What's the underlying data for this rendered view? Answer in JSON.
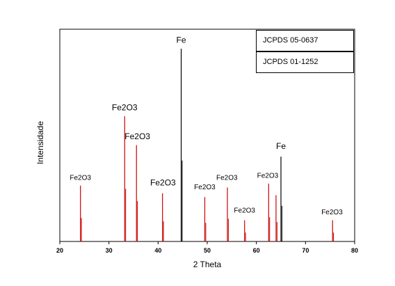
{
  "chart_data": {
    "type": "bar",
    "xlabel": "2 Theta",
    "ylabel": "Intensidade",
    "xlim": [
      20,
      80
    ],
    "ylim": [
      0,
      100
    ],
    "x_ticks": [
      "20",
      "30",
      "40",
      "50",
      "60",
      "70",
      "80"
    ],
    "grid": false,
    "legend": [
      "JCPDS 05-0637",
      "JCPDS 01-1252"
    ],
    "colors": {
      "fe2o3": "#cc0000",
      "fe": "#000000"
    },
    "series": [
      {
        "phase": "Fe2O3",
        "color": "#cc0000",
        "peaks": [
          {
            "x": 24.2,
            "y": 29
          },
          {
            "x": 33.2,
            "y": 65
          },
          {
            "x": 35.6,
            "y": 50
          },
          {
            "x": 40.9,
            "y": 25
          },
          {
            "x": 49.5,
            "y": 23
          },
          {
            "x": 54.1,
            "y": 28
          },
          {
            "x": 57.6,
            "y": 11
          },
          {
            "x": 62.5,
            "y": 30
          },
          {
            "x": 64.0,
            "y": 24
          },
          {
            "x": 75.5,
            "y": 11
          }
        ]
      },
      {
        "phase": "Fe",
        "color": "#000000",
        "peaks": [
          {
            "x": 44.7,
            "y": 100
          },
          {
            "x": 65.0,
            "y": 44
          }
        ]
      }
    ],
    "annotations": [
      {
        "text": "Fe2O3",
        "x": 24.2,
        "y": 32,
        "size": "small"
      },
      {
        "text": "Fe2O3",
        "x": 33.2,
        "y": 68,
        "size": "large"
      },
      {
        "text": "Fe2O3",
        "x": 35.8,
        "y": 53,
        "size": "large"
      },
      {
        "text": "Fe2O3",
        "x": 41.0,
        "y": 29,
        "size": "large"
      },
      {
        "text": "Fe2O3",
        "x": 49.5,
        "y": 27,
        "size": "small"
      },
      {
        "text": "Fe2O3",
        "x": 54.0,
        "y": 32,
        "size": "small"
      },
      {
        "text": "Fe2O3",
        "x": 57.6,
        "y": 15,
        "size": "small"
      },
      {
        "text": "Fe2O3",
        "x": 62.3,
        "y": 33,
        "size": "small"
      },
      {
        "text": "Fe2O3",
        "x": 75.4,
        "y": 14,
        "size": "small"
      },
      {
        "text": "Fe",
        "x": 44.7,
        "y": 103,
        "size": "large"
      },
      {
        "text": "Fe",
        "x": 65.0,
        "y": 48,
        "size": "large"
      }
    ]
  }
}
